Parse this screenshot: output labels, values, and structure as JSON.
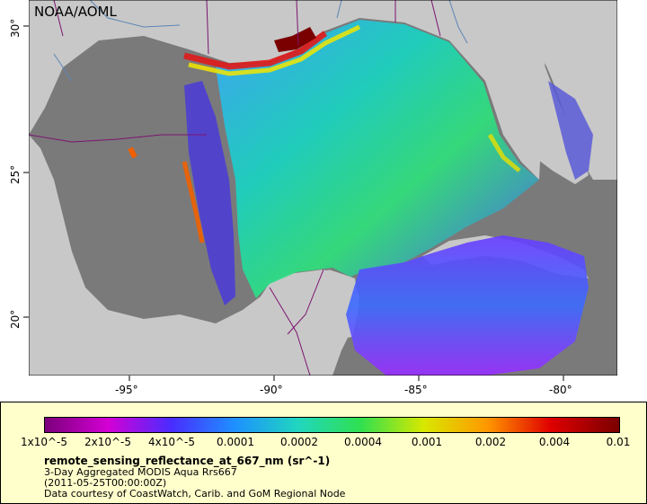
{
  "map": {
    "credit": "NOAA/AOML",
    "lon_ticks": [
      "-95°",
      "-90°",
      "-85°",
      "-80°"
    ],
    "lat_ticks": [
      "30°",
      "25°",
      "20°"
    ],
    "colors": {
      "land": "#c8c8c8",
      "no_data": "#7a7a7a",
      "border": "#7d1470",
      "river": "#5b86b5"
    }
  },
  "legend": {
    "ticks": [
      "1x10^-5",
      "2x10^-5",
      "4x10^-5",
      "0.0001",
      "0.0002",
      "0.0004",
      "0.001",
      "0.002",
      "0.004",
      "0.01"
    ],
    "variable": "remote_sensing_reflectance_at_667_nm (sr^-1)",
    "product": "3-Day Aggregated MODIS Aqua Rrs667",
    "time": "(2011-05-25T00:00:00Z)",
    "source": "Data courtesy of CoastWatch, Carib. and GoM Regional Node"
  }
}
